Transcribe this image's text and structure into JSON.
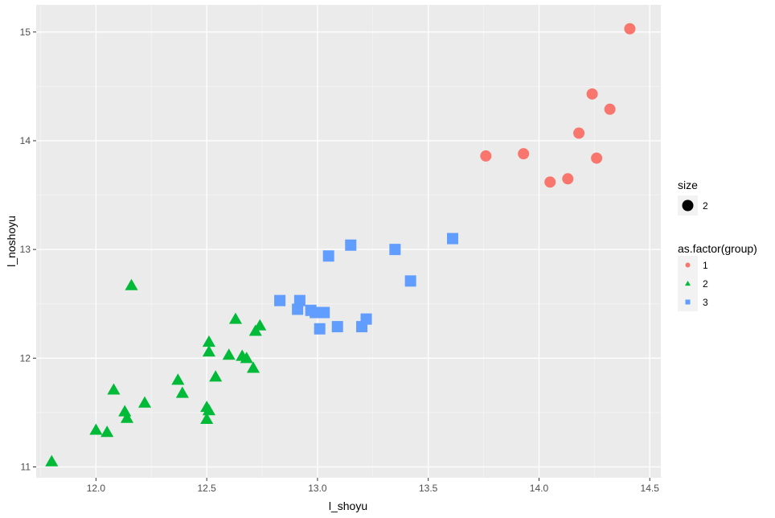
{
  "chart_data": {
    "type": "scatter",
    "title": "",
    "xlabel": "l_shoyu",
    "ylabel": "l_noshoyu",
    "xlim": [
      11.73,
      14.55
    ],
    "ylim": [
      10.9,
      15.25
    ],
    "x_ticks": [
      12.0,
      12.5,
      13.0,
      13.5,
      14.0,
      14.5
    ],
    "x_tick_labels": [
      "12.0",
      "12.5",
      "13.0",
      "13.5",
      "14.0",
      "14.5"
    ],
    "y_ticks": [
      11,
      12,
      13,
      14,
      15
    ],
    "y_tick_labels": [
      "11",
      "12",
      "13",
      "14",
      "15"
    ],
    "grid": true,
    "legend_position": "right",
    "legends": [
      {
        "title": "size",
        "entries": [
          {
            "label": "2",
            "shape": "circle",
            "color": "#000000"
          }
        ]
      },
      {
        "title": "as.factor(group)",
        "entries": [
          {
            "label": "1",
            "shape": "circle",
            "color": "#F8766D"
          },
          {
            "label": "2",
            "shape": "triangle",
            "color": "#00BA38"
          },
          {
            "label": "3",
            "shape": "square",
            "color": "#619CFF"
          }
        ]
      }
    ],
    "series": [
      {
        "group": "1",
        "shape": "circle",
        "color": "#F8766D",
        "points": [
          [
            13.76,
            13.86
          ],
          [
            13.93,
            13.88
          ],
          [
            14.05,
            13.62
          ],
          [
            14.13,
            13.65
          ],
          [
            14.18,
            14.07
          ],
          [
            14.24,
            14.43
          ],
          [
            14.26,
            13.84
          ],
          [
            14.32,
            14.29
          ],
          [
            14.41,
            15.03
          ]
        ]
      },
      {
        "group": "2",
        "shape": "triangle",
        "color": "#00BA38",
        "points": [
          [
            11.8,
            11.05
          ],
          [
            12.0,
            11.34
          ],
          [
            12.05,
            11.32
          ],
          [
            12.08,
            11.71
          ],
          [
            12.13,
            11.51
          ],
          [
            12.14,
            11.45
          ],
          [
            12.16,
            12.67
          ],
          [
            12.22,
            11.59
          ],
          [
            12.37,
            11.8
          ],
          [
            12.39,
            11.68
          ],
          [
            12.5,
            11.44
          ],
          [
            12.5,
            11.55
          ],
          [
            12.51,
            12.15
          ],
          [
            12.51,
            12.06
          ],
          [
            12.51,
            11.52
          ],
          [
            12.54,
            11.83
          ],
          [
            12.6,
            12.03
          ],
          [
            12.63,
            12.36
          ],
          [
            12.66,
            12.02
          ],
          [
            12.68,
            12.0
          ],
          [
            12.71,
            11.91
          ],
          [
            12.72,
            12.25
          ],
          [
            12.74,
            12.3
          ]
        ]
      },
      {
        "group": "3",
        "shape": "square",
        "color": "#619CFF",
        "points": [
          [
            12.83,
            12.53
          ],
          [
            12.91,
            12.45
          ],
          [
            12.92,
            12.53
          ],
          [
            12.97,
            12.44
          ],
          [
            12.99,
            12.42
          ],
          [
            13.01,
            12.27
          ],
          [
            13.03,
            12.42
          ],
          [
            13.05,
            12.94
          ],
          [
            13.09,
            12.29
          ],
          [
            13.15,
            13.04
          ],
          [
            13.2,
            12.29
          ],
          [
            13.22,
            12.36
          ],
          [
            13.35,
            13.0
          ],
          [
            13.42,
            12.71
          ],
          [
            13.61,
            13.1
          ]
        ]
      }
    ]
  }
}
